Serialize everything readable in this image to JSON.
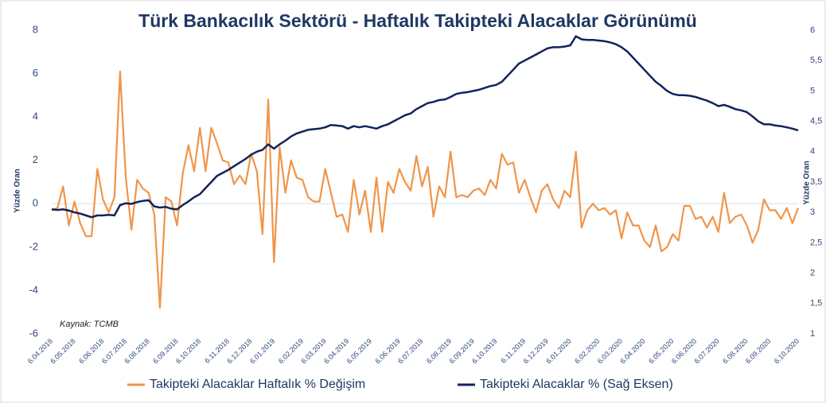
{
  "chart_data": {
    "type": "line",
    "title": "Türk Bankacılık Sektörü - Haftalık Takipteki Alacaklar Görünümü",
    "ylabel": "Yüzde Oran",
    "y2label": "Yüzde Oran",
    "annotation": "Kaynak: TCMB",
    "legend": "bottom",
    "categories": [
      "6.04.2018",
      null,
      null,
      null,
      "6.05.2018",
      null,
      null,
      null,
      null,
      "6.06.2018",
      null,
      null,
      null,
      "6.07.2018",
      null,
      null,
      null,
      "6.08.2018",
      null,
      null,
      null,
      null,
      "6.09.2018",
      null,
      null,
      null,
      "6.10.2018",
      null,
      null,
      null,
      null,
      "6.11.2018",
      null,
      null,
      null,
      "6.12.2018",
      null,
      null,
      null,
      "6.01.2019",
      null,
      null,
      null,
      null,
      "6.02.2019",
      null,
      null,
      null,
      "6.03.2019",
      null,
      null,
      null,
      "6.04.2019",
      null,
      null,
      null,
      "6.05.2019",
      null,
      null,
      null,
      null,
      "6.06.2019",
      null,
      null,
      null,
      "6.07.2019",
      null,
      null,
      null,
      null,
      "6.08.2019",
      null,
      null,
      null,
      "6.09.2019",
      null,
      null,
      null,
      "6.10.2019",
      null,
      null,
      null,
      null,
      "6.11.2019",
      null,
      null,
      null,
      "6.12.2019",
      null,
      null,
      null,
      "6.01.2020",
      null,
      null,
      null,
      null,
      "6.02.2020",
      null,
      null,
      null,
      "6.03.2020",
      null,
      null,
      null,
      "6.04.2020",
      null,
      null,
      null,
      null,
      "6.05.2020",
      null,
      null,
      null,
      "6.06.2020",
      null,
      null,
      null,
      "6.07.2020",
      null,
      null,
      null,
      null,
      "6.08.2020",
      null,
      null,
      null,
      "6.09.2020",
      null,
      null,
      null,
      null,
      "6.10.2020"
    ],
    "ylim": [
      -6,
      8
    ],
    "yticks": [
      -6,
      -4,
      -2,
      0,
      2,
      4,
      6,
      8
    ],
    "y2lim": [
      1,
      6
    ],
    "y2ticks": [
      1,
      {
        "value": 1.5,
        "label": "1,5"
      },
      2,
      {
        "value": 2.5,
        "label": "2,5"
      },
      3,
      {
        "value": 3.5,
        "label": "3,5"
      },
      4,
      {
        "value": 4.5,
        "label": "4,5"
      },
      5,
      {
        "value": 5.5,
        "label": "5,5"
      },
      6
    ],
    "series": [
      {
        "name": "Takipteki Alacaklar Haftalık % Değişim",
        "color": "#f0954a",
        "axis": "y",
        "values": [
          -0.3,
          -0.2,
          0.8,
          -1.0,
          0.1,
          -0.9,
          -1.5,
          -1.5,
          1.6,
          0.2,
          -0.4,
          0.3,
          6.1,
          1.2,
          -1.2,
          1.1,
          0.7,
          0.5,
          -0.5,
          -4.8,
          0.3,
          0.1,
          -1.0,
          1.4,
          2.7,
          1.5,
          3.5,
          1.5,
          3.5,
          2.8,
          2.0,
          1.9,
          0.9,
          1.3,
          0.9,
          2.3,
          1.5,
          -1.4,
          4.8,
          -2.7,
          2.6,
          0.5,
          2.0,
          1.2,
          1.1,
          0.3,
          0.1,
          0.1,
          1.6,
          0.5,
          -0.6,
          -0.5,
          -1.3,
          1.1,
          -0.5,
          0.6,
          -1.3,
          1.2,
          -1.3,
          1.0,
          0.5,
          1.6,
          1.0,
          0.6,
          2.2,
          0.8,
          1.7,
          -0.6,
          0.8,
          0.3,
          2.4,
          0.3,
          0.4,
          0.3,
          0.6,
          0.7,
          0.4,
          1.1,
          0.7,
          2.3,
          1.8,
          1.9,
          0.5,
          1.1,
          0.3,
          -0.4,
          0.6,
          0.9,
          0.2,
          -0.2,
          0.6,
          0.3,
          2.4,
          -1.1,
          -0.3,
          0,
          -0.3,
          -0.2,
          -0.5,
          -0.3,
          -1.6,
          -0.4,
          -1.0,
          -1.0,
          -1.7,
          -2.0,
          -1.0,
          -2.2,
          -2.0,
          -1.4,
          -1.7,
          -0.1,
          -0.1,
          -0.7,
          -0.6,
          -1.1,
          -0.6,
          -1.3,
          0.5,
          -0.9,
          -0.6,
          -0.5,
          -1.0,
          -1.8,
          -1.2,
          0.2,
          -0.3,
          -0.3,
          -0.7,
          -0.2,
          -0.9,
          -0.2
        ]
      },
      {
        "name": "Takipteki Alacaklar % (Sağ Eksen)",
        "color": "#12235c",
        "axis": "y2",
        "values": [
          3.05,
          3.04,
          3.05,
          3.03,
          3.0,
          2.98,
          2.95,
          2.92,
          2.95,
          2.95,
          2.96,
          2.95,
          3.12,
          3.15,
          3.14,
          3.17,
          3.19,
          3.2,
          3.1,
          3.08,
          3.09,
          3.06,
          3.05,
          3.12,
          3.18,
          3.25,
          3.3,
          3.4,
          3.5,
          3.6,
          3.65,
          3.7,
          3.76,
          3.82,
          3.88,
          3.95,
          4.0,
          4.03,
          4.12,
          4.05,
          4.12,
          4.18,
          4.25,
          4.3,
          4.33,
          4.36,
          4.37,
          4.38,
          4.4,
          4.44,
          4.43,
          4.42,
          4.38,
          4.42,
          4.4,
          4.42,
          4.4,
          4.38,
          4.42,
          4.45,
          4.5,
          4.55,
          4.6,
          4.63,
          4.7,
          4.75,
          4.8,
          4.82,
          4.85,
          4.86,
          4.9,
          4.95,
          4.97,
          4.98,
          5.0,
          5.02,
          5.05,
          5.08,
          5.1,
          5.15,
          5.25,
          5.35,
          5.45,
          5.5,
          5.55,
          5.6,
          5.65,
          5.7,
          5.72,
          5.72,
          5.73,
          5.75,
          5.9,
          5.85,
          5.84,
          5.84,
          5.83,
          5.82,
          5.8,
          5.77,
          5.72,
          5.65,
          5.55,
          5.45,
          5.35,
          5.25,
          5.15,
          5.08,
          5.0,
          4.95,
          4.93,
          4.93,
          4.92,
          4.9,
          4.87,
          4.84,
          4.8,
          4.75,
          4.77,
          4.74,
          4.7,
          4.68,
          4.65,
          4.58,
          4.5,
          4.45,
          4.45,
          4.43,
          4.42,
          4.4,
          4.38,
          4.35
        ]
      }
    ]
  }
}
